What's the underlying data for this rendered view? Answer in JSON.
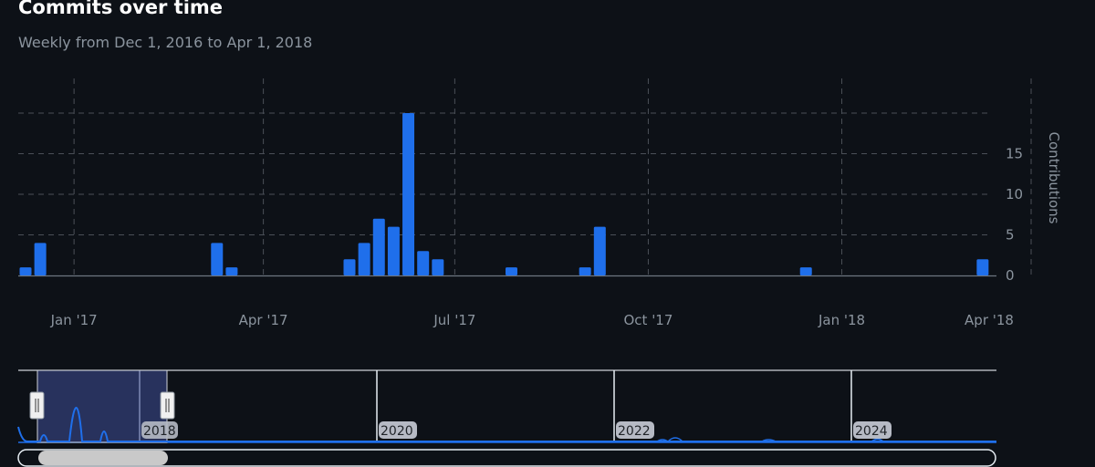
{
  "header": {
    "title": "Commits over time",
    "subtitle": "Weekly from Dec 1, 2016 to Apr 1, 2018"
  },
  "colors": {
    "bar": "#1f6feb",
    "grid": "#4a4f57",
    "navigator_selection": "#2d3a6b"
  },
  "chart_data": {
    "type": "bar",
    "title": "Commits over time",
    "subtitle": "Weekly from Dec 1, 2016 to Apr 1, 2018",
    "ylabel": "Contributions",
    "xlabel": "",
    "ylim": [
      0,
      20
    ],
    "y_ticks": [
      0,
      5,
      10,
      15
    ],
    "x_ticks": [
      "Jan '17",
      "Apr '17",
      "Jul '17",
      "Oct '17",
      "Jan '18",
      "Apr '18"
    ],
    "x_tick_dates": [
      "2017-01-01",
      "2017-04-01",
      "2017-07-01",
      "2017-10-01",
      "2018-01-01",
      "2018-04-01"
    ],
    "x_range": [
      "2016-12-25",
      "2018-04-01"
    ],
    "grid": true,
    "series": [
      {
        "values": [
          {
            "x": "2016-12-25",
            "y": 1
          },
          {
            "x": "2017-01-01",
            "y": 4
          },
          {
            "x": "2017-03-26",
            "y": 4
          },
          {
            "x": "2017-04-02",
            "y": 1
          },
          {
            "x": "2017-05-28",
            "y": 2
          },
          {
            "x": "2017-06-04",
            "y": 4
          },
          {
            "x": "2017-06-11",
            "y": 7
          },
          {
            "x": "2017-06-18",
            "y": 6
          },
          {
            "x": "2017-06-25",
            "y": 20
          },
          {
            "x": "2017-07-02",
            "y": 3
          },
          {
            "x": "2017-07-09",
            "y": 2
          },
          {
            "x": "2017-08-13",
            "y": 1
          },
          {
            "x": "2017-09-17",
            "y": 1
          },
          {
            "x": "2017-09-24",
            "y": 6
          },
          {
            "x": "2017-12-31",
            "y": 1
          },
          {
            "x": "2018-03-25",
            "y": 2
          }
        ]
      }
    ],
    "navigator": {
      "year_labels": [
        "2018",
        "2020",
        "2022",
        "2024"
      ]
    }
  }
}
